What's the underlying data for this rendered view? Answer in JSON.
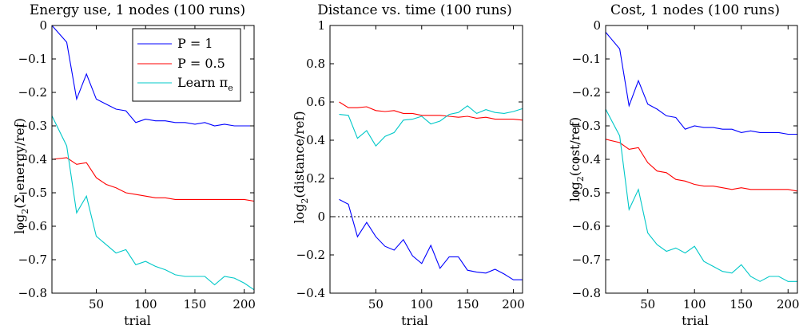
{
  "chart_data": [
    {
      "type": "line",
      "title": "Energy use,  1 nodes (100 runs)",
      "xlabel": "trial",
      "ylabel_parts": [
        "log",
        "2",
        "(Σ energy/ref)"
      ],
      "xlim": [
        5,
        210
      ],
      "ylim": [
        -0.8,
        0
      ],
      "xticks": [
        50,
        100,
        150,
        200
      ],
      "yticks": [
        0,
        -0.1,
        -0.2,
        -0.3,
        -0.4,
        -0.5,
        -0.6,
        -0.7,
        -0.8
      ],
      "ytick_labels": [
        "0",
        "−0.1",
        "−0.2",
        "−0.3",
        "−0.4",
        "−0.5",
        "−0.6",
        "−0.7",
        "−0.8"
      ],
      "x": [
        5,
        20,
        30,
        40,
        50,
        60,
        70,
        80,
        90,
        100,
        110,
        120,
        130,
        140,
        150,
        160,
        170,
        180,
        190,
        200,
        210
      ],
      "series": [
        {
          "name": "P = 1",
          "color": "#0000ff",
          "values": [
            0,
            -0.05,
            -0.22,
            -0.145,
            -0.22,
            -0.235,
            -0.25,
            -0.255,
            -0.29,
            -0.28,
            -0.285,
            -0.285,
            -0.29,
            -0.29,
            -0.295,
            -0.29,
            -0.3,
            -0.295,
            -0.3,
            -0.3,
            -0.3
          ]
        },
        {
          "name": "P = 0.5",
          "color": "#ff0000",
          "values": [
            -0.4,
            -0.395,
            -0.415,
            -0.41,
            -0.455,
            -0.475,
            -0.485,
            -0.5,
            -0.505,
            -0.51,
            -0.515,
            -0.515,
            -0.52,
            -0.52,
            -0.52,
            -0.52,
            -0.52,
            -0.52,
            -0.52,
            -0.52,
            -0.525
          ]
        },
        {
          "name": "Learn π_e",
          "color": "#00c8c8",
          "values": [
            -0.27,
            -0.36,
            -0.56,
            -0.51,
            -0.63,
            -0.655,
            -0.68,
            -0.67,
            -0.715,
            -0.705,
            -0.72,
            -0.73,
            -0.745,
            -0.75,
            -0.75,
            -0.75,
            -0.775,
            -0.75,
            -0.755,
            -0.77,
            -0.79
          ]
        }
      ],
      "hlines": [],
      "legend": {
        "location": "upper-right",
        "entries": [
          {
            "label": "P = 1",
            "color": "#0000ff"
          },
          {
            "label": "P = 0.5",
            "color": "#ff0000"
          },
          {
            "label_base": "Learn π",
            "label_sub": "e",
            "color": "#00c8c8"
          }
        ]
      }
    },
    {
      "type": "line",
      "title": "Distance vs. time (100 runs)",
      "xlabel": "trial",
      "ylabel_parts": [
        "log",
        "2",
        "(distance/ref)"
      ],
      "xlim": [
        0,
        210
      ],
      "ylim": [
        -0.4,
        1
      ],
      "xticks": [
        50,
        100,
        150,
        200
      ],
      "yticks": [
        1,
        0.8,
        0.6,
        0.4,
        0.2,
        0,
        -0.2,
        -0.4
      ],
      "ytick_labels": [
        "1",
        "0.8",
        "0.6",
        "0.4",
        "0.2",
        "0",
        "−0.2",
        "−0.4"
      ],
      "x": [
        10,
        20,
        30,
        40,
        50,
        60,
        70,
        80,
        90,
        100,
        110,
        120,
        130,
        140,
        150,
        160,
        170,
        180,
        190,
        200,
        210
      ],
      "series": [
        {
          "name": "P = 1",
          "color": "#0000ff",
          "values": [
            0.09,
            0.065,
            -0.105,
            -0.03,
            -0.105,
            -0.155,
            -0.175,
            -0.12,
            -0.205,
            -0.245,
            -0.15,
            -0.27,
            -0.21,
            -0.21,
            -0.28,
            -0.29,
            -0.295,
            -0.275,
            -0.3,
            -0.33,
            -0.33
          ]
        },
        {
          "name": "P = 0.5",
          "color": "#ff0000",
          "values": [
            0.6,
            0.57,
            0.57,
            0.575,
            0.555,
            0.55,
            0.555,
            0.54,
            0.54,
            0.53,
            0.53,
            0.53,
            0.525,
            0.52,
            0.525,
            0.515,
            0.52,
            0.51,
            0.51,
            0.51,
            0.505
          ]
        },
        {
          "name": "Learn π_e",
          "color": "#00c8c8",
          "values": [
            0.535,
            0.53,
            0.41,
            0.45,
            0.37,
            0.42,
            0.44,
            0.505,
            0.51,
            0.525,
            0.485,
            0.5,
            0.535,
            0.545,
            0.58,
            0.54,
            0.56,
            0.545,
            0.54,
            0.55,
            0.565
          ]
        }
      ],
      "hlines": [
        {
          "y": 1,
          "style": "dotted"
        },
        {
          "y": 0,
          "style": "dotted"
        }
      ]
    },
    {
      "type": "line",
      "title": "Cost,  1 nodes (100 runs)",
      "xlabel": "trial",
      "ylabel_parts": [
        "log",
        "2",
        "(cost/ref)"
      ],
      "xlim": [
        5,
        210
      ],
      "ylim": [
        -0.8,
        0
      ],
      "xticks": [
        50,
        100,
        150,
        200
      ],
      "yticks": [
        0,
        -0.1,
        -0.2,
        -0.3,
        -0.4,
        -0.5,
        -0.6,
        -0.7,
        -0.8
      ],
      "ytick_labels": [
        "0",
        "−0.1",
        "−0.2",
        "−0.3",
        "−0.4",
        "−0.5",
        "−0.6",
        "−0.7",
        "−0.8"
      ],
      "x": [
        5,
        20,
        30,
        40,
        50,
        60,
        70,
        80,
        90,
        100,
        110,
        120,
        130,
        140,
        150,
        160,
        170,
        180,
        190,
        200,
        210
      ],
      "series": [
        {
          "name": "P = 1",
          "color": "#0000ff",
          "values": [
            -0.02,
            -0.07,
            -0.24,
            -0.165,
            -0.235,
            -0.25,
            -0.27,
            -0.275,
            -0.31,
            -0.3,
            -0.305,
            -0.305,
            -0.31,
            -0.31,
            -0.32,
            -0.315,
            -0.32,
            -0.32,
            -0.32,
            -0.325,
            -0.325
          ]
        },
        {
          "name": "P = 0.5",
          "color": "#ff0000",
          "values": [
            -0.34,
            -0.35,
            -0.37,
            -0.365,
            -0.41,
            -0.435,
            -0.44,
            -0.46,
            -0.465,
            -0.475,
            -0.48,
            -0.48,
            -0.485,
            -0.49,
            -0.485,
            -0.49,
            -0.49,
            -0.49,
            -0.49,
            -0.49,
            -0.495
          ]
        },
        {
          "name": "Learn π_e",
          "color": "#00c8c8",
          "values": [
            -0.25,
            -0.33,
            -0.55,
            -0.49,
            -0.62,
            -0.655,
            -0.675,
            -0.665,
            -0.68,
            -0.66,
            -0.705,
            -0.72,
            -0.735,
            -0.74,
            -0.715,
            -0.75,
            -0.765,
            -0.75,
            -0.75,
            -0.765,
            -0.765
          ]
        }
      ],
      "hlines": []
    }
  ]
}
